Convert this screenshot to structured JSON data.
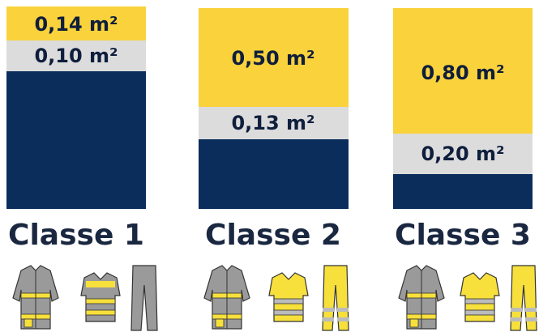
{
  "columns": [
    {
      "fluorescent_area": "0,14 m²",
      "reflective_area": "0,10 m²",
      "label": "Classe 1"
    },
    {
      "fluorescent_area": "0,50 m²",
      "reflective_area": "0,13 m²",
      "label": "Classe 2"
    },
    {
      "fluorescent_area": "0,80 m²",
      "reflective_area": "0,20 m²",
      "label": "Classe 3"
    }
  ]
}
